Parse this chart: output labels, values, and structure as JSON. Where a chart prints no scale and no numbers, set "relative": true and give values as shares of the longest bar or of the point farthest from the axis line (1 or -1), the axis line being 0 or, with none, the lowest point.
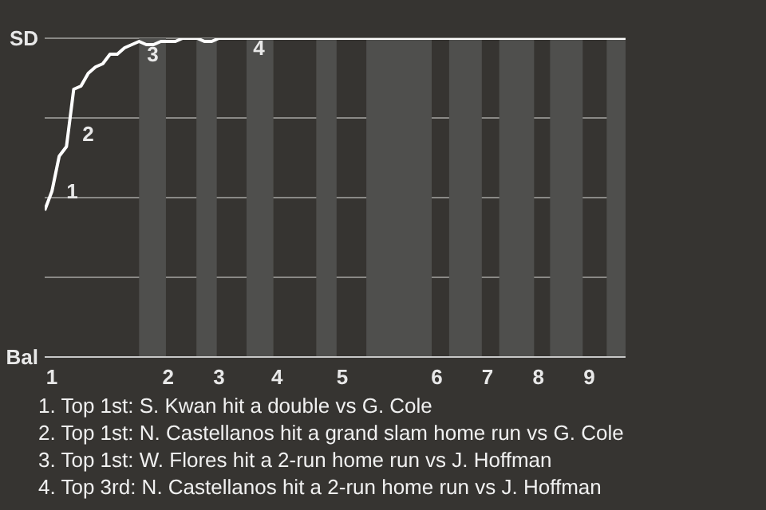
{
  "chart_data": {
    "type": "line",
    "relative": true,
    "categories": [
      null,
      "1",
      null,
      null,
      null,
      null,
      null,
      null,
      null,
      null,
      null,
      null,
      null,
      null,
      null,
      null,
      null,
      "2",
      null,
      null,
      null,
      null,
      null,
      null,
      "3",
      null,
      null,
      null,
      null,
      null,
      null,
      null,
      "4",
      null,
      null,
      null,
      null,
      null,
      null,
      null,
      null,
      "5",
      null,
      null,
      null,
      null,
      null,
      null,
      null,
      null,
      null,
      null,
      null,
      null,
      "6",
      null,
      null,
      null,
      null,
      null,
      null,
      "7",
      null,
      null,
      null,
      null,
      null,
      null,
      "8",
      null,
      null,
      null,
      null,
      null,
      null,
      "9",
      null,
      null,
      null,
      null,
      null
    ],
    "series": [
      {
        "color": "#ffffff",
        "values": [
          0.46,
          0.52,
          0.63,
          0.66,
          0.84,
          0.85,
          0.89,
          0.91,
          0.92,
          0.95,
          0.95,
          0.97,
          0.98,
          0.99,
          0.98,
          0.98,
          0.99,
          0.99,
          0.99,
          1,
          1,
          1,
          0.99,
          0.99,
          1,
          1,
          1,
          1,
          1,
          1,
          1,
          1,
          1,
          1,
          1,
          1,
          1,
          1,
          1,
          1,
          1,
          1,
          1,
          1,
          1,
          1,
          1,
          1,
          1,
          1,
          1,
          1,
          1,
          1,
          1,
          1,
          1,
          1,
          1,
          1,
          1,
          1,
          1,
          1,
          1,
          1,
          1,
          1,
          1,
          1,
          1,
          1,
          1,
          1,
          1,
          1,
          1,
          1,
          1,
          1,
          1
        ]
      }
    ],
    "grid": "y",
    "marker": "none",
    "line_style": "solid",
    "annotations": [
      "SD",
      "Bal",
      "1",
      "2",
      "3",
      "4",
      "1. Top 1st: S. Kwan hit a double vs G. Cole",
      "2. Top 1st: N. Castellanos hit a grand slam home run vs G. Cole",
      "3. Top 1st: W. Flores hit a 2-run home run vs J. Hoffman",
      "4. Top 3rd: N. Castellanos hit a 2-run home run vs J. Hoffman"
    ]
  }
}
